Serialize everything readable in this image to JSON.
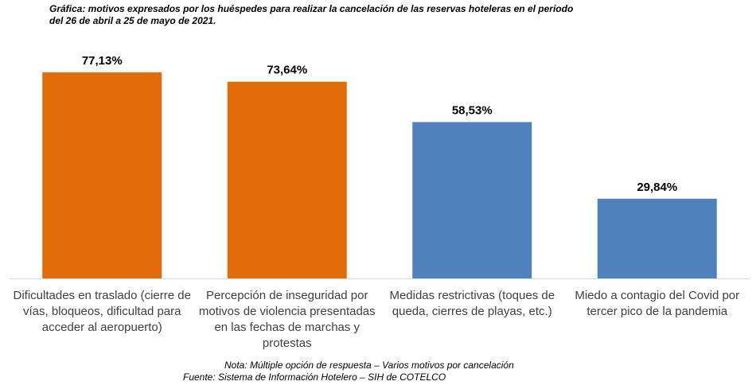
{
  "chart_data": {
    "type": "bar",
    "title": "Gráfica: motivos expresados por los huéspedes para realizar la cancelación de las reservas hoteleras en el periodo del 26 de abril a 25 de mayo de 2021.",
    "categories": [
      "Dificultades en traslado (cierre de vías, bloqueos, dificultad para acceder al aeropuerto)",
      "Percepción de inseguridad por motivos de violencia presentadas en las fechas de marchas y protestas",
      "Medidas restrictivas (toques de queda, cierres de playas, etc.)",
      "Miedo a contagio del Covid por tercer pico de la pandemia"
    ],
    "values": [
      77.13,
      73.64,
      58.53,
      29.84
    ],
    "value_labels": [
      "77,13%",
      "73,64%",
      "58,53%",
      "29,84%"
    ],
    "colors": [
      "#e36c0a",
      "#e36c0a",
      "#4f81bd",
      "#4f81bd"
    ],
    "note": "Nota:  Múltiple opción de respuesta – Varios motivos por cancelación",
    "source": "Fuente: Sistema de Información Hotelero – SIH de COTELCO"
  }
}
